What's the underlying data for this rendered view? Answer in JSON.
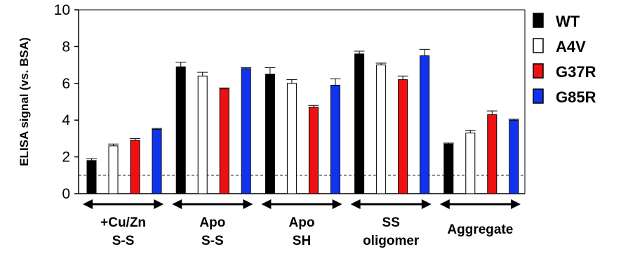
{
  "chart_data": {
    "type": "bar",
    "title": "",
    "xlabel": "",
    "ylabel": "ELISA signal (vs. BSA)",
    "ylim": [
      0,
      10
    ],
    "yticks": [
      "0",
      "2",
      "4",
      "6",
      "8",
      "10"
    ],
    "reference_line": {
      "y": 1,
      "style": "dashed"
    },
    "categories": [
      {
        "lines": [
          "+Cu/Zn",
          "S-S"
        ]
      },
      {
        "lines": [
          "Apo",
          "S-S"
        ]
      },
      {
        "lines": [
          "Apo",
          "SH"
        ]
      },
      {
        "lines": [
          "SS",
          "oligomer"
        ]
      },
      {
        "lines": [
          "Aggregate"
        ]
      }
    ],
    "series": [
      {
        "name": "WT",
        "color": "#000000",
        "values": [
          1.8,
          6.9,
          6.5,
          7.6,
          2.7
        ],
        "errors": [
          0.1,
          0.25,
          0.35,
          0.15,
          0.05
        ]
      },
      {
        "name": "A4V",
        "color": "#ffffff",
        "values": [
          2.6,
          6.4,
          6.0,
          7.0,
          3.3
        ],
        "errors": [
          0.1,
          0.2,
          0.2,
          0.1,
          0.15
        ]
      },
      {
        "name": "G37R",
        "color": "#ee1111",
        "values": [
          2.9,
          5.7,
          4.7,
          6.2,
          4.3
        ],
        "errors": [
          0.1,
          0.05,
          0.1,
          0.2,
          0.2
        ]
      },
      {
        "name": "G85R",
        "color": "#1133ee",
        "values": [
          3.5,
          6.8,
          5.9,
          7.5,
          4.0
        ],
        "errors": [
          0.05,
          0.05,
          0.35,
          0.35,
          0.05
        ]
      }
    ],
    "legend": {
      "position": "right"
    },
    "grid": false
  }
}
